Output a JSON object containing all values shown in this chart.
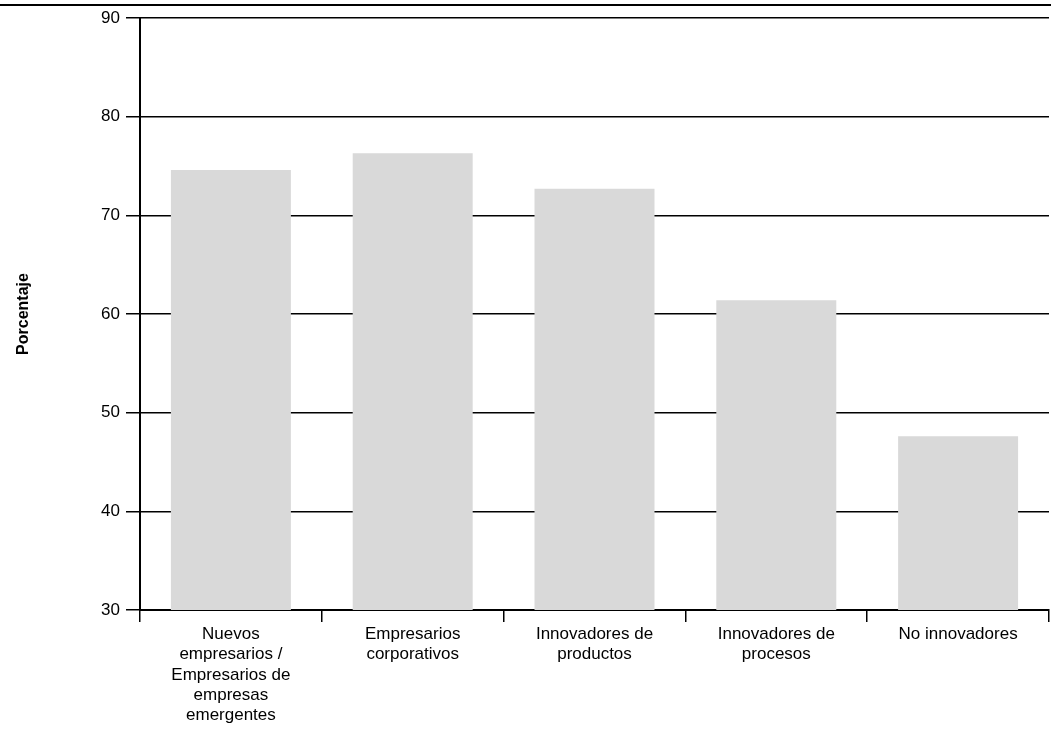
{
  "chart_data": {
    "type": "bar",
    "ylabel": "Porcentaje",
    "categories": [
      "Nuevos empresarios / Empresarios de empresas emergentes",
      "Empresarios corporativos",
      "Innovadores de productos",
      "Innovadores de procesos",
      "No innovadores"
    ],
    "values": [
      74.6,
      76.3,
      72.7,
      61.4,
      47.6
    ],
    "color": "#d9d9d9",
    "ylim": [
      30,
      90
    ],
    "yticks": [
      30,
      40,
      50,
      60,
      70,
      80,
      90
    ],
    "grid": "y",
    "legend": false
  }
}
